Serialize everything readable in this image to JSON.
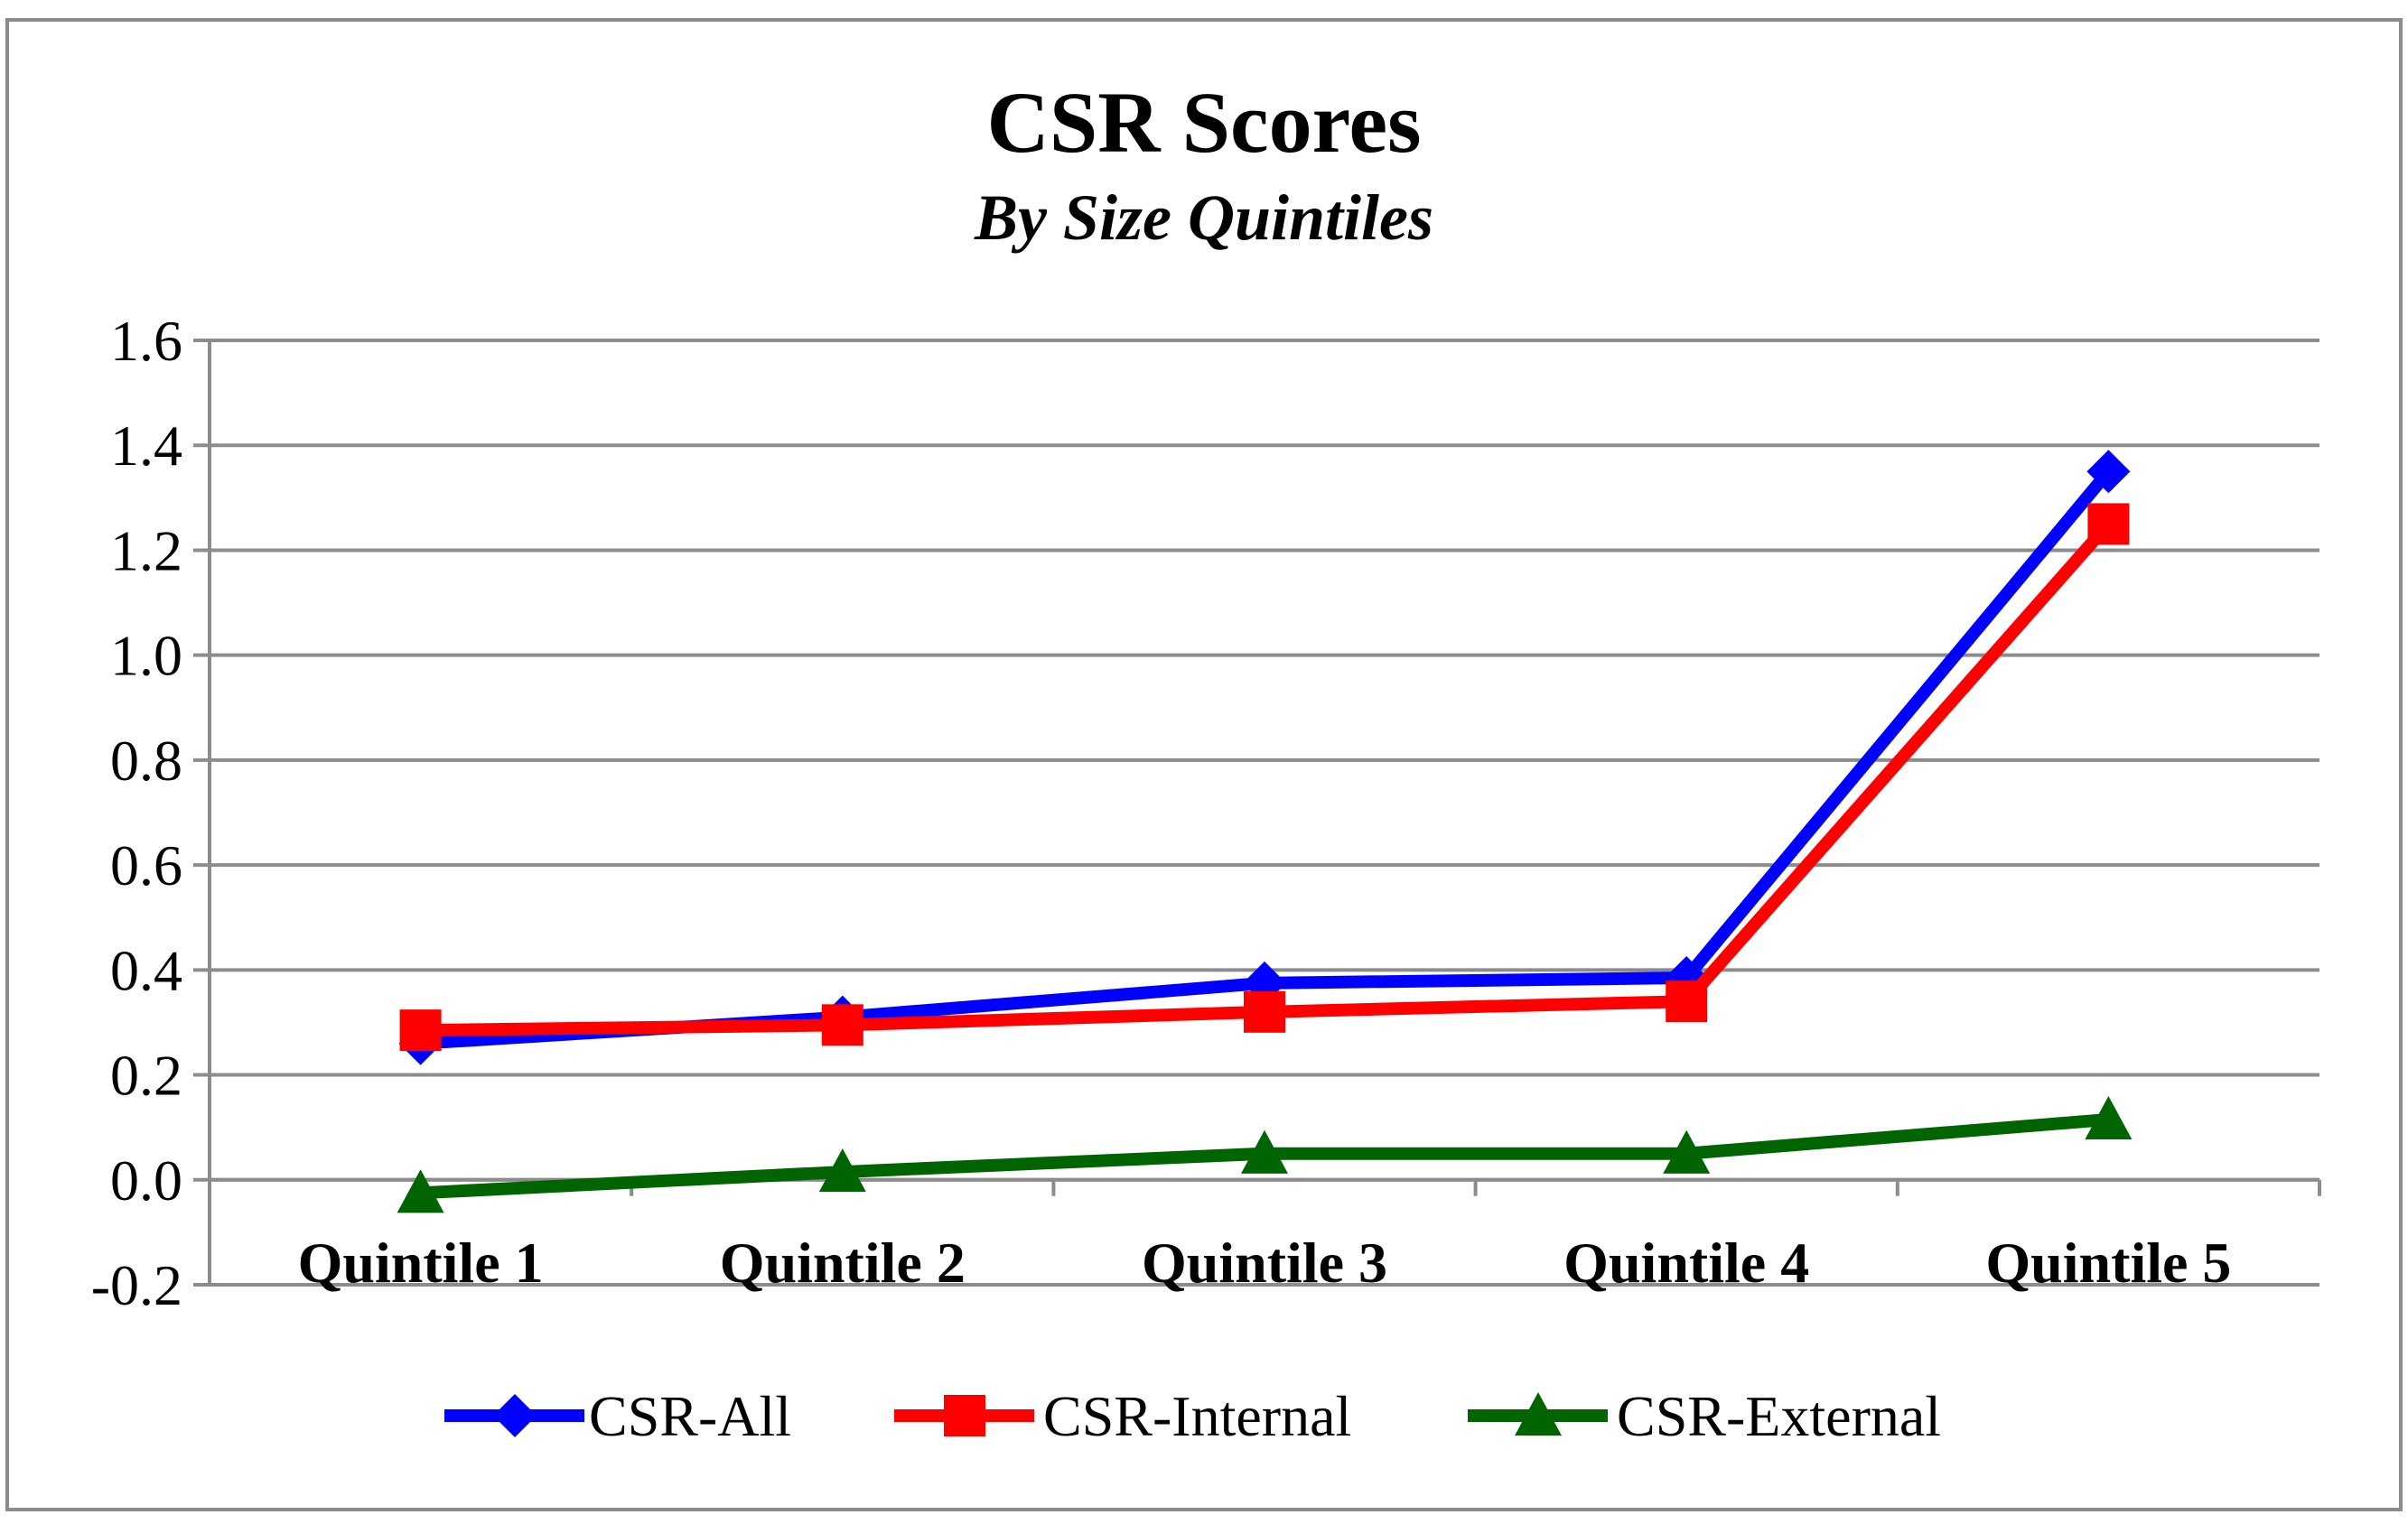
{
  "chart_data": {
    "type": "line",
    "title": "CSR Scores",
    "subtitle": "By Size Quintiles",
    "categories": [
      "Quintile 1",
      "Quintile 2",
      "Quintile 3",
      "Quintile 4",
      "Quintile 5"
    ],
    "ylim": [
      -0.2,
      1.6
    ],
    "yticks": [
      "-0.2",
      "0.0",
      "0.2",
      "0.4",
      "0.6",
      "0.8",
      "1.0",
      "1.2",
      "1.4",
      "1.6"
    ],
    "grid": true,
    "legend_position": "bottom",
    "series": [
      {
        "name": "CSR-All",
        "color": "#0000ff",
        "marker": "diamond",
        "values": [
          0.26,
          0.31,
          0.375,
          0.385,
          1.35
        ]
      },
      {
        "name": "CSR-Internal",
        "color": "#ff0000",
        "marker": "square",
        "values": [
          0.285,
          0.295,
          0.32,
          0.34,
          1.25
        ]
      },
      {
        "name": "CSR-External",
        "color": "#006400",
        "marker": "triangle",
        "values": [
          -0.025,
          0.015,
          0.05,
          0.05,
          0.115
        ]
      }
    ]
  }
}
